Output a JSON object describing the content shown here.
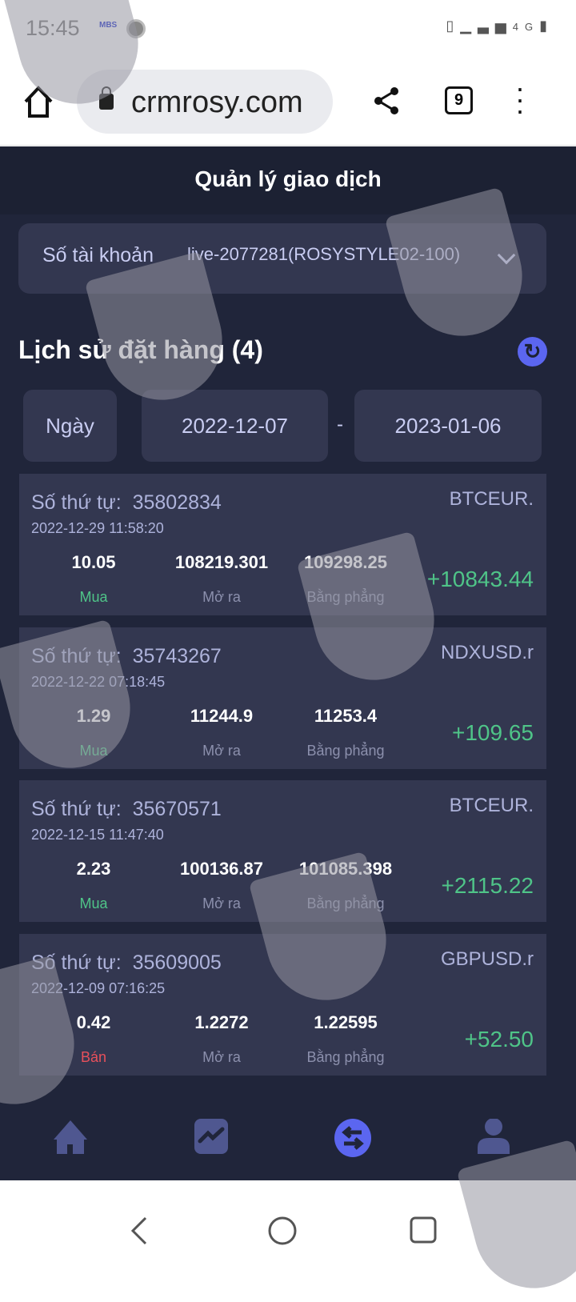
{
  "status_bar": {
    "time": "15:45",
    "notif_label": "MBS",
    "network": "4G"
  },
  "browser": {
    "url": "crmrosy.com",
    "tab_count": "9"
  },
  "header": {
    "title": "Quản lý giao dịch"
  },
  "account": {
    "label": "Số tài khoản",
    "value": "live-2077281(ROSYSTYLE02-100)"
  },
  "history": {
    "title": "Lịch sử đặt hàng (4)"
  },
  "filter": {
    "period": "Ngày",
    "from": "2022-12-07",
    "separator": "-",
    "to": "2023-01-06"
  },
  "labels": {
    "order_no": "Số thứ tự:",
    "open": "Mở ra",
    "close": "Bằng phẳng"
  },
  "orders": [
    {
      "id": "35802834",
      "symbol": "BTCEUR.",
      "datetime": "2022-12-29 11:58:20",
      "volume": "10.05",
      "side": "Mua",
      "open": "108219.301",
      "close": "109298.25",
      "pnl": "+10843.44"
    },
    {
      "id": "35743267",
      "symbol": "NDXUSD.r",
      "datetime": "2022-12-22 07:18:45",
      "volume": "1.29",
      "side": "Mua",
      "open": "11244.9",
      "close": "11253.4",
      "pnl": "+109.65"
    },
    {
      "id": "35670571",
      "symbol": "BTCEUR.",
      "datetime": "2022-12-15 11:47:40",
      "volume": "2.23",
      "side": "Mua",
      "open": "100136.87",
      "close": "101085.398",
      "pnl": "+2115.22"
    },
    {
      "id": "35609005",
      "symbol": "GBPUSD.r",
      "datetime": "2022-12-09 07:16:25",
      "volume": "0.42",
      "side": "Bán",
      "open": "1.2272",
      "close": "1.22595",
      "pnl": "+52.50"
    }
  ],
  "colors": {
    "background": "#20253a",
    "card": "#333750",
    "accent": "#5b66f0",
    "profit": "#4fc488",
    "sell": "#e8505b"
  }
}
